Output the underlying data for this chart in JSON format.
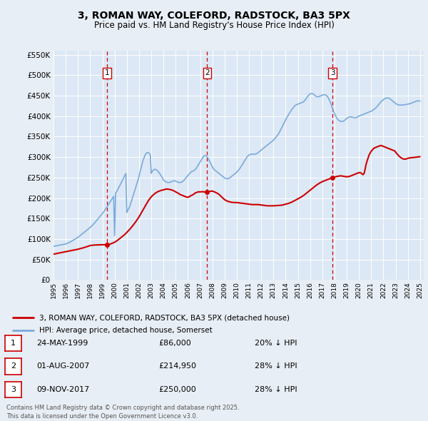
{
  "title": "3, ROMAN WAY, COLEFORD, RADSTOCK, BA3 5PX",
  "subtitle": "Price paid vs. HM Land Registry's House Price Index (HPI)",
  "background_color": "#e8eef5",
  "plot_bg_color": "#dce8f5",
  "ylim": [
    0,
    560000
  ],
  "yticks": [
    0,
    50000,
    100000,
    150000,
    200000,
    250000,
    300000,
    350000,
    400000,
    450000,
    500000,
    550000
  ],
  "legend_house": "3, ROMAN WAY, COLEFORD, RADSTOCK, BA3 5PX (detached house)",
  "legend_hpi": "HPI: Average price, detached house, Somerset",
  "footer": "Contains HM Land Registry data © Crown copyright and database right 2025.\nThis data is licensed under the Open Government Licence v3.0.",
  "sales": [
    {
      "num": 1,
      "date": "24-MAY-1999",
      "price": 86000,
      "pct": "20% ↓ HPI",
      "x": 1999.39
    },
    {
      "num": 2,
      "date": "01-AUG-2007",
      "price": 214950,
      "pct": "28% ↓ HPI",
      "x": 2007.58
    },
    {
      "num": 3,
      "date": "09-NOV-2017",
      "price": 250000,
      "pct": "28% ↓ HPI",
      "x": 2017.85
    }
  ],
  "house_color": "#cc0000",
  "hpi_color": "#7aaadd",
  "vline_color": "#cc0000",
  "hpi_data_x": [
    1995.0,
    1995.08,
    1995.17,
    1995.25,
    1995.33,
    1995.42,
    1995.5,
    1995.58,
    1995.67,
    1995.75,
    1995.83,
    1995.92,
    1996.0,
    1996.08,
    1996.17,
    1996.25,
    1996.33,
    1996.42,
    1996.5,
    1996.58,
    1996.67,
    1996.75,
    1996.83,
    1996.92,
    1997.0,
    1997.08,
    1997.17,
    1997.25,
    1997.33,
    1997.42,
    1997.5,
    1997.58,
    1997.67,
    1997.75,
    1997.83,
    1997.92,
    1998.0,
    1998.08,
    1998.17,
    1998.25,
    1998.33,
    1998.42,
    1998.5,
    1998.58,
    1998.67,
    1998.75,
    1998.83,
    1998.92,
    1999.0,
    1999.08,
    1999.17,
    1999.25,
    1999.33,
    1999.42,
    1999.5,
    1999.58,
    1999.67,
    1999.75,
    1999.83,
    1999.92,
    2000.0,
    2000.08,
    2000.17,
    2000.25,
    2000.33,
    2000.42,
    2000.5,
    2000.58,
    2000.67,
    2000.75,
    2000.83,
    2000.92,
    2001.0,
    2001.08,
    2001.17,
    2001.25,
    2001.33,
    2001.42,
    2001.5,
    2001.58,
    2001.67,
    2001.75,
    2001.83,
    2001.92,
    2002.0,
    2002.08,
    2002.17,
    2002.25,
    2002.33,
    2002.42,
    2002.5,
    2002.58,
    2002.67,
    2002.75,
    2002.83,
    2002.92,
    2003.0,
    2003.08,
    2003.17,
    2003.25,
    2003.33,
    2003.42,
    2003.5,
    2003.58,
    2003.67,
    2003.75,
    2003.83,
    2003.92,
    2004.0,
    2004.08,
    2004.17,
    2004.25,
    2004.33,
    2004.42,
    2004.5,
    2004.58,
    2004.67,
    2004.75,
    2004.83,
    2004.92,
    2005.0,
    2005.08,
    2005.17,
    2005.25,
    2005.33,
    2005.42,
    2005.5,
    2005.58,
    2005.67,
    2005.75,
    2005.83,
    2005.92,
    2006.0,
    2006.08,
    2006.17,
    2006.25,
    2006.33,
    2006.42,
    2006.5,
    2006.58,
    2006.67,
    2006.75,
    2006.83,
    2006.92,
    2007.0,
    2007.08,
    2007.17,
    2007.25,
    2007.33,
    2007.42,
    2007.5,
    2007.58,
    2007.67,
    2007.75,
    2007.83,
    2007.92,
    2008.0,
    2008.08,
    2008.17,
    2008.25,
    2008.33,
    2008.42,
    2008.5,
    2008.58,
    2008.67,
    2008.75,
    2008.83,
    2008.92,
    2009.0,
    2009.08,
    2009.17,
    2009.25,
    2009.33,
    2009.42,
    2009.5,
    2009.58,
    2009.67,
    2009.75,
    2009.83,
    2009.92,
    2010.0,
    2010.08,
    2010.17,
    2010.25,
    2010.33,
    2010.42,
    2010.5,
    2010.58,
    2010.67,
    2010.75,
    2010.83,
    2010.92,
    2011.0,
    2011.08,
    2011.17,
    2011.25,
    2011.33,
    2011.42,
    2011.5,
    2011.58,
    2011.67,
    2011.75,
    2011.83,
    2011.92,
    2012.0,
    2012.08,
    2012.17,
    2012.25,
    2012.33,
    2012.42,
    2012.5,
    2012.58,
    2012.67,
    2012.75,
    2012.83,
    2012.92,
    2013.0,
    2013.08,
    2013.17,
    2013.25,
    2013.33,
    2013.42,
    2013.5,
    2013.58,
    2013.67,
    2013.75,
    2013.83,
    2013.92,
    2014.0,
    2014.08,
    2014.17,
    2014.25,
    2014.33,
    2014.42,
    2014.5,
    2014.58,
    2014.67,
    2014.75,
    2014.83,
    2014.92,
    2015.0,
    2015.08,
    2015.17,
    2015.25,
    2015.33,
    2015.42,
    2015.5,
    2015.58,
    2015.67,
    2015.75,
    2015.83,
    2015.92,
    2016.0,
    2016.08,
    2016.17,
    2016.25,
    2016.33,
    2016.42,
    2016.5,
    2016.58,
    2016.67,
    2016.75,
    2016.83,
    2016.92,
    2017.0,
    2017.08,
    2017.17,
    2017.25,
    2017.33,
    2017.42,
    2017.5,
    2017.58,
    2017.67,
    2017.75,
    2017.83,
    2017.92,
    2018.0,
    2018.08,
    2018.17,
    2018.25,
    2018.33,
    2018.42,
    2018.5,
    2018.58,
    2018.67,
    2018.75,
    2018.83,
    2018.92,
    2019.0,
    2019.08,
    2019.17,
    2019.25,
    2019.33,
    2019.42,
    2019.5,
    2019.58,
    2019.67,
    2019.75,
    2019.83,
    2019.92,
    2020.0,
    2020.08,
    2020.17,
    2020.25,
    2020.33,
    2020.42,
    2020.5,
    2020.58,
    2020.67,
    2020.75,
    2020.83,
    2020.92,
    2021.0,
    2021.08,
    2021.17,
    2021.25,
    2021.33,
    2021.42,
    2021.5,
    2021.58,
    2021.67,
    2021.75,
    2021.83,
    2021.92,
    2022.0,
    2022.08,
    2022.17,
    2022.25,
    2022.33,
    2022.42,
    2022.5,
    2022.58,
    2022.67,
    2022.75,
    2022.83,
    2022.92,
    2023.0,
    2023.08,
    2023.17,
    2023.25,
    2023.33,
    2023.42,
    2023.5,
    2023.58,
    2023.67,
    2023.75,
    2023.83,
    2023.92,
    2024.0,
    2024.08,
    2024.17,
    2024.25,
    2024.33,
    2024.42,
    2024.5,
    2024.58,
    2024.67,
    2024.75,
    2024.83,
    2024.92,
    2025.0
  ],
  "hpi_data_y": [
    82000,
    82500,
    83000,
    83500,
    84000,
    84500,
    85000,
    85500,
    86000,
    86500,
    87000,
    87500,
    88000,
    89000,
    90000,
    91000,
    92000,
    93500,
    95000,
    96500,
    98000,
    99500,
    101000,
    102500,
    104000,
    106000,
    108000,
    110000,
    112000,
    114000,
    116000,
    118000,
    120000,
    122000,
    124000,
    126000,
    128000,
    130500,
    133000,
    135500,
    138000,
    141000,
    144000,
    147000,
    150000,
    153000,
    156000,
    159000,
    162000,
    165500,
    169000,
    172500,
    176000,
    180000,
    184000,
    188000,
    192000,
    196000,
    200000,
    204000,
    108000,
    212000,
    216000,
    220000,
    225000,
    230000,
    235000,
    240000,
    245000,
    250000,
    255000,
    260000,
    165000,
    170000,
    175000,
    180000,
    188000,
    196000,
    204000,
    212000,
    220000,
    228000,
    236000,
    244000,
    253000,
    263000,
    273000,
    283000,
    292000,
    299000,
    305000,
    309000,
    311000,
    311000,
    309000,
    306000,
    260000,
    265000,
    268000,
    270000,
    270000,
    269000,
    267000,
    264000,
    261000,
    257000,
    253000,
    249000,
    244000,
    242000,
    240000,
    239000,
    238000,
    238000,
    238000,
    239000,
    240000,
    241000,
    242000,
    242000,
    241000,
    240000,
    239000,
    238000,
    238000,
    238000,
    239000,
    241000,
    243000,
    246000,
    249000,
    252000,
    255000,
    258000,
    261000,
    263000,
    265000,
    266000,
    267000,
    269000,
    272000,
    276000,
    280000,
    284000,
    288000,
    292000,
    296000,
    300000,
    303000,
    304000,
    303000,
    300000,
    296000,
    291000,
    286000,
    281000,
    276000,
    272000,
    269000,
    267000,
    265000,
    263000,
    261000,
    259000,
    257000,
    255000,
    253000,
    251000,
    249000,
    248000,
    247000,
    247000,
    248000,
    249000,
    251000,
    253000,
    255000,
    257000,
    259000,
    261000,
    263000,
    266000,
    269000,
    272000,
    276000,
    280000,
    284000,
    288000,
    292000,
    296000,
    300000,
    303000,
    305000,
    306000,
    307000,
    307000,
    307000,
    307000,
    307000,
    308000,
    309000,
    311000,
    313000,
    315000,
    317000,
    319000,
    321000,
    323000,
    325000,
    327000,
    329000,
    331000,
    333000,
    335000,
    337000,
    339000,
    341000,
    344000,
    347000,
    350000,
    353000,
    357000,
    361000,
    366000,
    371000,
    376000,
    381000,
    386000,
    391000,
    396000,
    400000,
    404000,
    408000,
    412000,
    416000,
    419000,
    422000,
    425000,
    427000,
    428000,
    429000,
    430000,
    431000,
    432000,
    433000,
    434000,
    436000,
    439000,
    442000,
    446000,
    449000,
    452000,
    454000,
    455000,
    455000,
    454000,
    452000,
    450000,
    448000,
    447000,
    447000,
    448000,
    449000,
    450000,
    451000,
    452000,
    452000,
    452000,
    450000,
    448000,
    444000,
    439000,
    433000,
    426000,
    419000,
    412000,
    406000,
    401000,
    396000,
    392000,
    390000,
    388000,
    387000,
    387000,
    387000,
    388000,
    390000,
    392000,
    394000,
    396000,
    397000,
    398000,
    398000,
    398000,
    397000,
    396000,
    396000,
    396000,
    397000,
    399000,
    400000,
    401000,
    402000,
    403000,
    404000,
    405000,
    406000,
    407000,
    408000,
    409000,
    410000,
    411000,
    412000,
    413000,
    415000,
    417000,
    419000,
    421000,
    424000,
    427000,
    430000,
    433000,
    436000,
    438000,
    440000,
    442000,
    443000,
    444000,
    444000,
    444000,
    443000,
    441000,
    439000,
    437000,
    435000,
    433000,
    431000,
    429000,
    428000,
    427000,
    427000,
    427000,
    427000,
    427000,
    427000,
    428000,
    428000,
    429000,
    429000,
    430000,
    430000,
    431000,
    432000,
    433000,
    434000,
    435000,
    436000,
    437000,
    437000,
    437000,
    437000
  ],
  "house_data_x": [
    1995.0,
    1995.25,
    1995.5,
    1995.75,
    1996.0,
    1996.25,
    1996.5,
    1996.75,
    1997.0,
    1997.25,
    1997.5,
    1997.75,
    1998.0,
    1998.25,
    1998.5,
    1998.75,
    1999.0,
    1999.2,
    1999.39,
    1999.6,
    1999.75,
    2000.0,
    2000.25,
    2000.5,
    2000.75,
    2001.0,
    2001.25,
    2001.5,
    2001.75,
    2002.0,
    2002.25,
    2002.5,
    2002.75,
    2003.0,
    2003.25,
    2003.5,
    2003.75,
    2004.0,
    2004.25,
    2004.5,
    2004.75,
    2005.0,
    2005.25,
    2005.33,
    2005.42,
    2005.5,
    2005.58,
    2005.67,
    2005.75,
    2005.83,
    2005.92,
    2006.0,
    2006.08,
    2006.17,
    2006.25,
    2006.33,
    2006.42,
    2006.5,
    2006.58,
    2006.67,
    2006.75,
    2006.83,
    2006.92,
    2007.0,
    2007.17,
    2007.33,
    2007.42,
    2007.5,
    2007.58,
    2007.67,
    2007.75,
    2008.0,
    2008.25,
    2008.5,
    2008.75,
    2009.0,
    2009.25,
    2009.5,
    2009.75,
    2010.0,
    2010.25,
    2010.5,
    2010.75,
    2011.0,
    2011.25,
    2011.5,
    2011.75,
    2012.0,
    2012.25,
    2012.5,
    2012.75,
    2013.0,
    2013.25,
    2013.5,
    2013.75,
    2014.0,
    2014.25,
    2014.5,
    2014.75,
    2015.0,
    2015.25,
    2015.5,
    2015.75,
    2016.0,
    2016.25,
    2016.5,
    2016.75,
    2017.0,
    2017.25,
    2017.5,
    2017.67,
    2017.75,
    2017.85,
    2018.0,
    2018.08,
    2018.17,
    2018.25,
    2018.33,
    2018.42,
    2018.5,
    2018.58,
    2018.67,
    2018.75,
    2018.83,
    2018.92,
    2019.0,
    2019.08,
    2019.17,
    2019.25,
    2019.33,
    2019.42,
    2019.5,
    2019.58,
    2019.67,
    2019.75,
    2019.83,
    2019.92,
    2020.0,
    2020.08,
    2020.17,
    2020.25,
    2020.33,
    2020.42,
    2020.5,
    2020.58,
    2020.67,
    2020.75,
    2020.83,
    2020.92,
    2021.0,
    2021.08,
    2021.17,
    2021.25,
    2021.33,
    2021.42,
    2021.5,
    2021.58,
    2021.67,
    2021.75,
    2021.83,
    2021.92,
    2022.0,
    2022.08,
    2022.17,
    2022.25,
    2022.33,
    2022.42,
    2022.5,
    2022.58,
    2022.67,
    2022.75,
    2022.83,
    2022.92,
    2023.0,
    2023.08,
    2023.17,
    2023.25,
    2023.33,
    2023.42,
    2023.5,
    2023.58,
    2023.67,
    2023.75,
    2023.83,
    2023.92,
    2024.0,
    2024.17,
    2024.5,
    2024.75,
    2025.0
  ],
  "house_data_y": [
    63000,
    64500,
    66000,
    67500,
    69000,
    70500,
    72000,
    73500,
    75000,
    77000,
    79000,
    81500,
    84000,
    85000,
    85500,
    85800,
    86000,
    86000,
    86000,
    87000,
    89000,
    92000,
    97000,
    103000,
    109000,
    116000,
    124000,
    133000,
    143000,
    154000,
    167000,
    180000,
    193000,
    203000,
    210000,
    215000,
    218000,
    220000,
    222000,
    221000,
    219000,
    215000,
    211000,
    209000,
    208000,
    207000,
    206000,
    205000,
    204000,
    203000,
    202000,
    202000,
    203000,
    204000,
    206000,
    207000,
    208000,
    210000,
    212000,
    213000,
    214000,
    215000,
    215000,
    215000,
    215500,
    215000,
    214980,
    214960,
    214950,
    215000,
    216000,
    217000,
    214000,
    210000,
    203000,
    196000,
    192000,
    190000,
    189000,
    189000,
    188000,
    187000,
    186000,
    185000,
    184000,
    184000,
    184000,
    183000,
    182000,
    181000,
    181000,
    181000,
    181500,
    182000,
    183000,
    185000,
    187000,
    190000,
    194000,
    198000,
    202000,
    207000,
    213000,
    219000,
    225000,
    231000,
    236000,
    240000,
    243000,
    246000,
    248000,
    249000,
    250000,
    251000,
    252000,
    252500,
    253000,
    253500,
    254000,
    254000,
    254000,
    253500,
    253000,
    252500,
    252000,
    252000,
    252000,
    252500,
    253000,
    254000,
    255000,
    256000,
    257000,
    258000,
    259000,
    260000,
    261000,
    262000,
    262000,
    261000,
    259000,
    257000,
    260000,
    270000,
    282000,
    291000,
    298000,
    305000,
    310000,
    314000,
    317000,
    320000,
    322000,
    323000,
    324000,
    325000,
    326000,
    327000,
    328000,
    328000,
    327000,
    326000,
    325000,
    324000,
    323000,
    322000,
    321000,
    320000,
    319000,
    318000,
    317000,
    316000,
    315000,
    312000,
    309000,
    306000,
    303000,
    301000,
    299000,
    297000,
    296000,
    295000,
    295000,
    295000,
    296000,
    297000,
    298000,
    299000,
    300000,
    301000
  ]
}
